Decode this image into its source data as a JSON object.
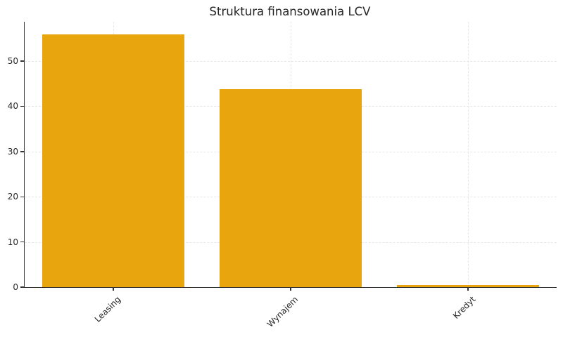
{
  "figure": {
    "background": "#ffffff"
  },
  "chart_data": {
    "type": "bar",
    "title": "Struktura finansowania LCV",
    "categories": [
      "Leasing",
      "Wynajem",
      "Kredyt"
    ],
    "values": [
      55.9,
      43.8,
      0.5
    ],
    "xlabel": "",
    "ylabel": "",
    "ylim": [
      0,
      58.7
    ],
    "yticks": [
      0,
      10,
      20,
      30,
      40,
      50
    ],
    "grid": "dashed, horizontal and vertical",
    "legend": "none",
    "bar_color": "#E9A50D",
    "axis_color": "#333333",
    "grid_color": "#E7E7E7",
    "text_color": "#262626",
    "bar_width_fraction": 0.8
  }
}
